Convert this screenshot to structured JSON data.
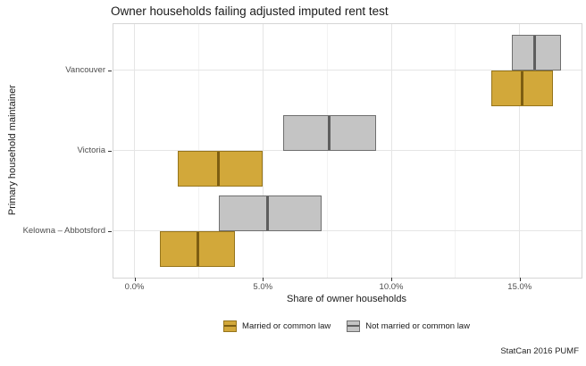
{
  "title": "Owner households failing adjusted imputed rent test",
  "caption": "StatCan 2016 PUMF",
  "axes": {
    "x": {
      "label": "Share of owner households",
      "ticks": [
        {
          "value": 0,
          "label": "0.0%"
        },
        {
          "value": 5,
          "label": "5.0%"
        },
        {
          "value": 10,
          "label": "10.0%"
        },
        {
          "value": 15,
          "label": "15.0%"
        }
      ],
      "minor_ticks": [
        2.5,
        7.5,
        12.5
      ]
    },
    "y": {
      "label": "Primary household maintainer",
      "categories": [
        "Vancouver",
        "Victoria",
        "Kelowna – Abbotsford"
      ]
    }
  },
  "legend": {
    "items": [
      {
        "label": "Married or common law",
        "fill": "#D2A83A",
        "stroke": "#96751C",
        "median": "#7D5E12"
      },
      {
        "label": "Not married or common law",
        "fill": "#C4C4C4",
        "stroke": "#6F6F6F",
        "median": "#5E5E5E"
      }
    ]
  },
  "chart_data": {
    "type": "crossbar",
    "orientation": "horizontal",
    "title": "Owner households failing adjusted imputed rent test",
    "xlabel": "Share of owner households",
    "ylabel": "Primary household maintainer",
    "categories": [
      "Vancouver",
      "Victoria",
      "Kelowna – Abbotsford"
    ],
    "x_unit": "percent",
    "xlim": [
      -0.8,
      17.4
    ],
    "grid": true,
    "legend_position": "bottom",
    "series": [
      {
        "name": "Married or common law",
        "values": [
          {
            "category": "Vancouver",
            "min": 13.9,
            "mid": 15.1,
            "max": 16.3
          },
          {
            "category": "Victoria",
            "min": 1.7,
            "mid": 3.3,
            "max": 5.0
          },
          {
            "category": "Kelowna – Abbotsford",
            "min": 1.0,
            "mid": 2.5,
            "max": 3.9
          }
        ]
      },
      {
        "name": "Not married or common law",
        "values": [
          {
            "category": "Vancouver",
            "min": 14.7,
            "mid": 15.6,
            "max": 16.6
          },
          {
            "category": "Victoria",
            "min": 5.8,
            "mid": 7.6,
            "max": 9.4
          },
          {
            "category": "Kelowna – Abbotsford",
            "min": 3.3,
            "mid": 5.2,
            "max": 7.3
          }
        ]
      }
    ]
  },
  "colors": {
    "background": "#FFFFFF",
    "panel_border": "#D5D5D5",
    "grid_major": "#E5E5E5",
    "grid_minor": "#F2F2F2",
    "tick": "#333333",
    "tick_label": "#4D4D4D",
    "text": "#1A1A1A"
  }
}
